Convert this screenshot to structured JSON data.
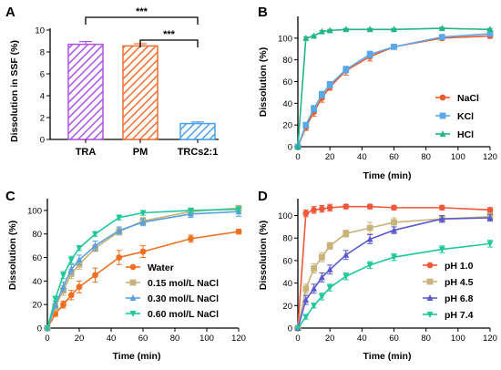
{
  "chart_data": [
    {
      "panel": "A",
      "type": "bar",
      "ylabel": "Dissolution in SSF (%)",
      "ylim": [
        0,
        10
      ],
      "yticks": [
        0,
        2,
        4,
        6,
        8,
        10
      ],
      "categories": [
        "TRA",
        "PM",
        "TRCs2:1"
      ],
      "values": [
        8.7,
        8.55,
        1.45
      ],
      "errors": [
        0.25,
        0.2,
        0.15
      ],
      "colors": [
        "#b054e8",
        "#f07030",
        "#4aa0e8"
      ],
      "significance": [
        {
          "from": 0,
          "to": 2,
          "label": "***"
        },
        {
          "from": 1,
          "to": 2,
          "label": "***"
        }
      ]
    },
    {
      "panel": "B",
      "type": "line",
      "xlabel": "Time (min)",
      "ylabel": "Dissolution (%)",
      "xlim": [
        0,
        120
      ],
      "ylim": [
        0,
        120
      ],
      "xticks": [
        0,
        20,
        40,
        60,
        80,
        100,
        120
      ],
      "yticks": [
        0,
        20,
        40,
        60,
        80,
        100
      ],
      "legend_position": "bottom-right",
      "series": [
        {
          "name": "NaCl",
          "color": "#f05a28",
          "marker": "circle",
          "x": [
            0,
            5,
            10,
            15,
            20,
            30,
            45,
            60,
            90,
            120
          ],
          "y": [
            0,
            18,
            32,
            45,
            55,
            70,
            83,
            92,
            100,
            102
          ],
          "err": [
            0,
            3,
            4,
            4,
            3,
            4,
            4,
            2,
            2,
            2
          ]
        },
        {
          "name": "KCl",
          "color": "#5aa8e8",
          "marker": "square",
          "x": [
            0,
            5,
            10,
            15,
            20,
            30,
            45,
            60,
            90,
            120
          ],
          "y": [
            0,
            20,
            35,
            48,
            57,
            71,
            85,
            92,
            101,
            104
          ],
          "err": [
            0,
            2,
            3,
            3,
            3,
            3,
            3,
            2,
            2,
            2
          ]
        },
        {
          "name": "HCl",
          "color": "#22b585",
          "marker": "triangle",
          "x": [
            0,
            5,
            10,
            15,
            20,
            30,
            45,
            60,
            90,
            120
          ],
          "y": [
            0,
            100,
            102,
            106,
            107,
            108,
            108,
            108,
            109,
            108
          ],
          "err": [
            0,
            1,
            1,
            1,
            1,
            1,
            1,
            1,
            1,
            1
          ]
        }
      ]
    },
    {
      "panel": "C",
      "type": "line",
      "xlabel": "Time (min)",
      "ylabel": "Dissolution (%)",
      "xlim": [
        0,
        120
      ],
      "ylim": [
        0,
        110
      ],
      "xticks": [
        0,
        20,
        40,
        60,
        80,
        100,
        120
      ],
      "yticks": [
        0,
        20,
        40,
        60,
        80,
        100
      ],
      "legend_position": "bottom-right",
      "series": [
        {
          "name": "Water",
          "color": "#f07020",
          "marker": "circle",
          "x": [
            0,
            5,
            10,
            15,
            20,
            30,
            45,
            60,
            90,
            120
          ],
          "y": [
            0,
            12,
            20,
            28,
            35,
            45,
            60,
            65,
            76,
            82
          ],
          "err": [
            0,
            2,
            3,
            4,
            5,
            6,
            6,
            5,
            3,
            2
          ]
        },
        {
          "name": "0.15 mol/L NaCl",
          "color": "#c8b47a",
          "marker": "square",
          "x": [
            0,
            5,
            10,
            15,
            20,
            30,
            45,
            60,
            90,
            120
          ],
          "y": [
            0,
            18,
            32,
            46,
            54,
            68,
            82,
            91,
            99,
            102
          ],
          "err": [
            0,
            3,
            4,
            4,
            4,
            3,
            3,
            3,
            2,
            2
          ]
        },
        {
          "name": "0.30 mol/L NaCl",
          "color": "#5aa0e0",
          "marker": "triangle",
          "x": [
            0,
            5,
            10,
            15,
            20,
            30,
            45,
            60,
            90,
            120
          ],
          "y": [
            0,
            20,
            35,
            50,
            58,
            70,
            83,
            90,
            97,
            99
          ],
          "err": [
            0,
            3,
            4,
            4,
            4,
            4,
            3,
            3,
            3,
            4
          ]
        },
        {
          "name": "0.60 mol/L NaCl",
          "color": "#1ec89a",
          "marker": "triangle-down",
          "x": [
            0,
            5,
            10,
            15,
            20,
            30,
            45,
            60,
            90,
            120
          ],
          "y": [
            0,
            25,
            45,
            58,
            68,
            80,
            94,
            98,
            100,
            101
          ],
          "err": [
            0,
            2,
            3,
            3,
            2,
            2,
            2,
            2,
            2,
            2
          ]
        }
      ]
    },
    {
      "panel": "D",
      "type": "line",
      "xlabel": "Time (min)",
      "ylabel": "Dissolution (%)",
      "xlim": [
        0,
        120
      ],
      "ylim": [
        0,
        115
      ],
      "xticks": [
        0,
        20,
        40,
        60,
        80,
        100,
        120
      ],
      "yticks": [
        0,
        20,
        40,
        60,
        80,
        100
      ],
      "legend_position": "bottom-right",
      "series": [
        {
          "name": "pH 1.0",
          "color": "#f0583a",
          "marker": "circle",
          "x": [
            0,
            5,
            10,
            15,
            20,
            30,
            45,
            60,
            90,
            120
          ],
          "y": [
            0,
            102,
            105,
            106,
            107,
            108,
            108,
            107,
            107,
            105
          ],
          "err": [
            0,
            3,
            3,
            3,
            3,
            2,
            2,
            2,
            2,
            2
          ]
        },
        {
          "name": "pH 4.5",
          "color": "#c8b47a",
          "marker": "square",
          "x": [
            0,
            5,
            10,
            15,
            20,
            30,
            45,
            60,
            90,
            120
          ],
          "y": [
            0,
            35,
            53,
            63,
            73,
            84,
            89,
            94,
            97,
            99
          ],
          "err": [
            0,
            4,
            4,
            4,
            3,
            3,
            5,
            4,
            3,
            3
          ]
        },
        {
          "name": "pH 6.8",
          "color": "#5a5ad0",
          "marker": "triangle",
          "x": [
            0,
            5,
            10,
            15,
            20,
            30,
            45,
            60,
            90,
            120
          ],
          "y": [
            0,
            25,
            35,
            45,
            52,
            65,
            79,
            87,
            97,
            98
          ],
          "err": [
            0,
            4,
            4,
            4,
            4,
            4,
            4,
            3,
            3,
            3
          ]
        },
        {
          "name": "pH 7.4",
          "color": "#1ec89a",
          "marker": "triangle-down",
          "x": [
            0,
            5,
            10,
            15,
            20,
            30,
            45,
            60,
            90,
            120
          ],
          "y": [
            0,
            10,
            20,
            28,
            36,
            46,
            56,
            63,
            70,
            75
          ],
          "err": [
            0,
            2,
            2,
            3,
            3,
            3,
            3,
            3,
            3,
            3
          ]
        }
      ]
    }
  ]
}
